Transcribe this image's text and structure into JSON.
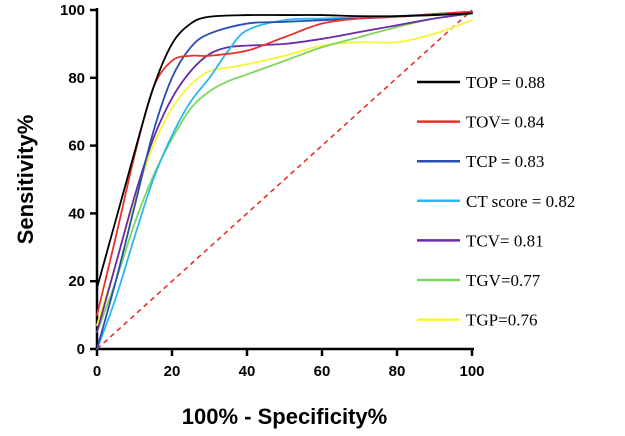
{
  "chart_data": {
    "type": "line",
    "title": "",
    "xlabel": "100% - Specificity%",
    "ylabel": "Sensitivity%",
    "xlim": [
      0,
      100
    ],
    "ylim": [
      0,
      100
    ],
    "xticks": [
      0,
      20,
      40,
      60,
      80,
      100
    ],
    "yticks": [
      0,
      20,
      40,
      60,
      80,
      100
    ],
    "legend_position": "right",
    "reference_line": {
      "name": "chance",
      "color": "#e8312a",
      "style": "dashed",
      "points": [
        [
          0,
          0
        ],
        [
          100,
          100
        ]
      ]
    },
    "series": [
      {
        "name": "TOP = 0.88",
        "color": "#000000",
        "x": [
          0,
          5,
          10,
          15,
          20,
          25,
          30,
          40,
          50,
          60,
          70,
          80,
          90,
          100
        ],
        "y": [
          18,
          38,
          58,
          77,
          90,
          96,
          98,
          98.5,
          98.5,
          98.5,
          98.2,
          98.2,
          98.5,
          99
        ]
      },
      {
        "name": "TOV= 0.84",
        "color": "#e8312a",
        "x": [
          0,
          5,
          10,
          15,
          20,
          25,
          30,
          40,
          50,
          60,
          70,
          80,
          90,
          100
        ],
        "y": [
          10,
          33,
          57,
          77,
          85,
          86.5,
          86.5,
          88,
          92,
          96,
          97.5,
          98,
          98.8,
          99.5
        ]
      },
      {
        "name": "TCP = 0.83",
        "color": "#2a4db5",
        "x": [
          0,
          5,
          10,
          15,
          20,
          25,
          30,
          40,
          50,
          60,
          70,
          80,
          90,
          100
        ],
        "y": [
          0,
          20,
          42,
          64,
          80,
          89,
          93,
          96,
          96.5,
          97,
          97.5,
          98,
          98.8,
          99.5
        ]
      },
      {
        "name": "CT score = 0.82",
        "color": "#29b8ef",
        "x": [
          0,
          5,
          10,
          15,
          20,
          25,
          30,
          35,
          40,
          50,
          60,
          70,
          80,
          90,
          100
        ],
        "y": [
          0,
          15,
          33,
          50,
          63,
          73,
          80,
          88,
          94,
          97,
          97.5,
          97.8,
          98.2,
          98.8,
          99.5
        ]
      },
      {
        "name": "TCV= 0.81",
        "color": "#6a2ba8",
        "x": [
          0,
          5,
          10,
          15,
          20,
          25,
          30,
          35,
          40,
          50,
          60,
          70,
          80,
          90,
          100
        ],
        "y": [
          5,
          25,
          45,
          62,
          74,
          82,
          87,
          89,
          89.5,
          90,
          91.5,
          93.5,
          95.5,
          97.5,
          99
        ]
      },
      {
        "name": "TGV=0.77",
        "color": "#7dd65d",
        "x": [
          0,
          5,
          10,
          15,
          20,
          25,
          30,
          35,
          40,
          50,
          60,
          70,
          80,
          90,
          100
        ],
        "y": [
          5,
          20,
          37,
          51,
          62,
          71,
          76,
          79,
          81,
          85,
          89,
          92,
          95,
          97.5,
          99
        ]
      },
      {
        "name": "TGP=0.76",
        "color": "#f5f53a",
        "x": [
          0,
          5,
          10,
          15,
          20,
          25,
          30,
          35,
          40,
          50,
          60,
          70,
          80,
          90,
          100
        ],
        "y": [
          7,
          25,
          44,
          60,
          71,
          78,
          82,
          83,
          84,
          86.5,
          89.5,
          90.5,
          90.5,
          93,
          97
        ]
      }
    ]
  }
}
